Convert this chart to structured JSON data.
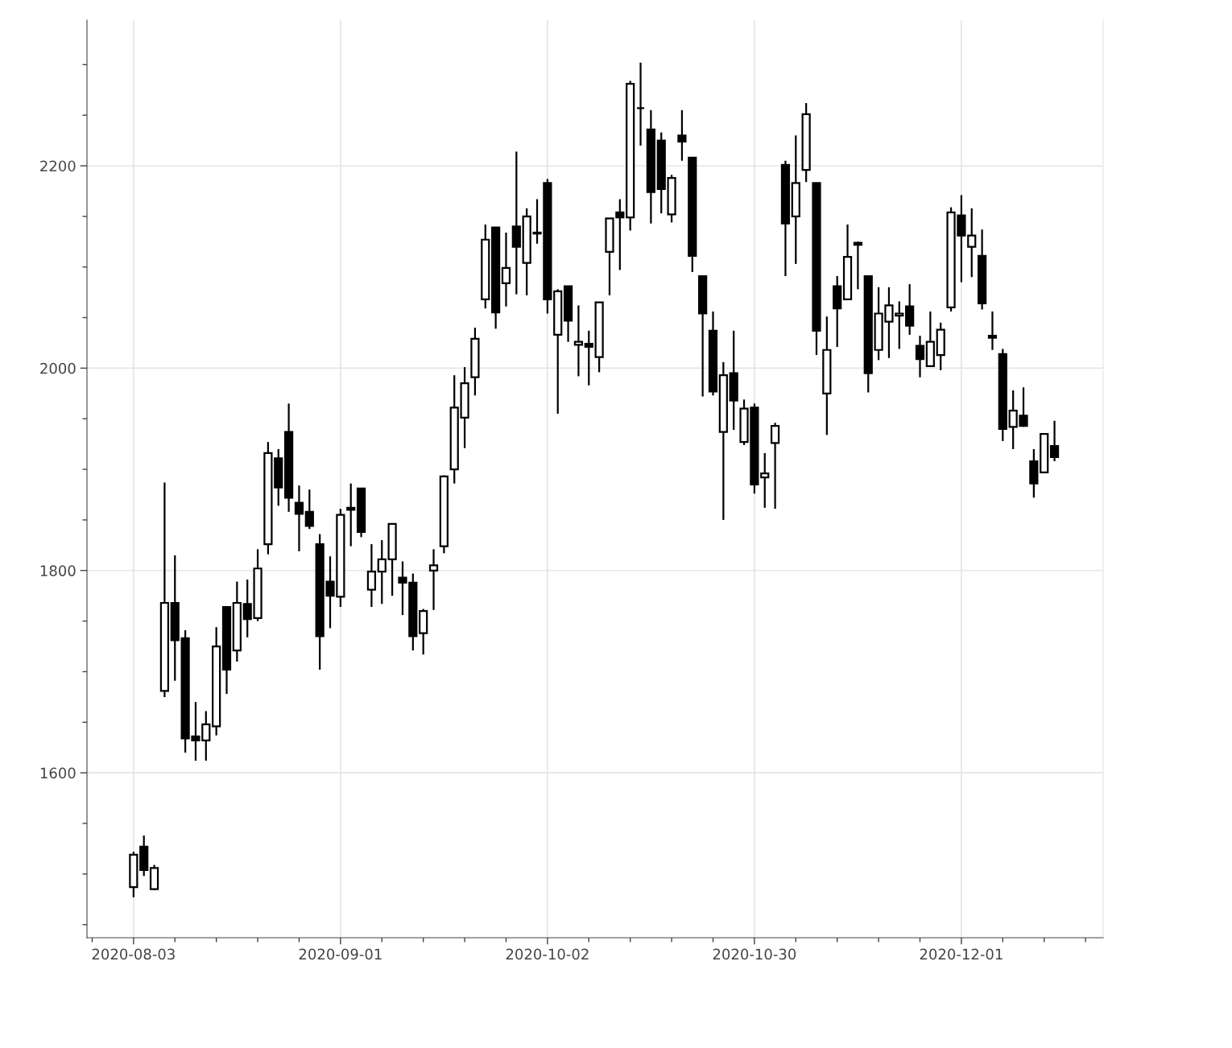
{
  "chart_data": {
    "type": "candlestick",
    "color": "#000000",
    "categories": [
      "2020-08-03",
      null,
      null,
      null,
      null,
      null,
      null,
      null,
      null,
      null,
      null,
      null,
      null,
      null,
      null,
      null,
      null,
      null,
      null,
      null,
      "2020-09-01",
      null,
      null,
      null,
      null,
      null,
      null,
      null,
      null,
      null,
      null,
      null,
      null,
      null,
      null,
      null,
      null,
      null,
      null,
      null,
      "2020-10-02",
      null,
      null,
      null,
      null,
      null,
      null,
      null,
      null,
      null,
      null,
      null,
      null,
      null,
      null,
      null,
      null,
      null,
      null,
      null,
      "2020-10-30",
      null,
      null,
      null,
      null,
      null,
      null,
      null,
      null,
      null,
      null,
      null,
      null,
      null,
      null,
      null,
      null,
      null,
      null,
      null,
      "2020-12-01",
      null,
      null,
      null,
      null,
      null,
      null,
      null,
      null,
      null
    ],
    "ohlc": [
      [
        1487,
        1522,
        1477,
        1519
      ],
      [
        1527,
        1538,
        1498,
        1504
      ],
      [
        1485,
        1509,
        1484,
        1506
      ],
      [
        1681,
        1887,
        1675,
        1768
      ],
      [
        1768,
        1815,
        1691,
        1731
      ],
      [
        1733,
        1741,
        1620,
        1634
      ],
      [
        1636,
        1670,
        1612,
        1632
      ],
      [
        1632,
        1661,
        1612,
        1648
      ],
      [
        1646,
        1744,
        1637,
        1725
      ],
      [
        1764,
        1764,
        1678,
        1702
      ],
      [
        1721,
        1789,
        1710,
        1768
      ],
      [
        1767,
        1791,
        1734,
        1752
      ],
      [
        1753,
        1821,
        1750,
        1802
      ],
      [
        1826,
        1927,
        1816,
        1916
      ],
      [
        1911,
        1920,
        1864,
        1882
      ],
      [
        1937,
        1965,
        1858,
        1872
      ],
      [
        1867,
        1884,
        1819,
        1856
      ],
      [
        1858,
        1880,
        1841,
        1844
      ],
      [
        1826,
        1836,
        1702,
        1735
      ],
      [
        1789,
        1814,
        1743,
        1775
      ],
      [
        1774,
        1861,
        1764,
        1855
      ],
      [
        1862,
        1886,
        1824,
        1860
      ],
      [
        1881,
        1881,
        1833,
        1838
      ],
      [
        1781,
        1826,
        1764,
        1799
      ],
      [
        1799,
        1830,
        1767,
        1811
      ],
      [
        1811,
        1846,
        1775,
        1846
      ],
      [
        1793,
        1809,
        1756,
        1788
      ],
      [
        1788,
        1797,
        1721,
        1735
      ],
      [
        1738,
        1762,
        1717,
        1760
      ],
      [
        1800,
        1821,
        1761,
        1805
      ],
      [
        1824,
        1894,
        1817,
        1893
      ],
      [
        1900,
        1993,
        1886,
        1961
      ],
      [
        1951,
        2001,
        1921,
        1985
      ],
      [
        1991,
        2040,
        1973,
        2029
      ],
      [
        2068,
        2142,
        2059,
        2127
      ],
      [
        2139,
        2139,
        2039,
        2055
      ],
      [
        2084,
        2134,
        2061,
        2099
      ],
      [
        2140,
        2214,
        2073,
        2120
      ],
      [
        2104,
        2158,
        2072,
        2150
      ],
      [
        2134,
        2167,
        2123,
        2133
      ],
      [
        2183,
        2187,
        2054,
        2068
      ],
      [
        2033,
        2078,
        1955,
        2076
      ],
      [
        2081,
        2081,
        2026,
        2047
      ],
      [
        2023,
        2062,
        1992,
        2026
      ],
      [
        2024,
        2037,
        1983,
        2021
      ],
      [
        2011,
        2065,
        1996,
        2065
      ],
      [
        2115,
        2148,
        2072,
        2148
      ],
      [
        2154,
        2167,
        2097,
        2149
      ],
      [
        2149,
        2284,
        2136,
        2281
      ],
      [
        2257,
        2302,
        2220,
        2257
      ],
      [
        2236,
        2255,
        2143,
        2174
      ],
      [
        2225,
        2233,
        2153,
        2177
      ],
      [
        2152,
        2191,
        2144,
        2188
      ],
      [
        2230,
        2255,
        2205,
        2224
      ],
      [
        2208,
        2208,
        2095,
        2111
      ],
      [
        2091,
        2091,
        1972,
        2054
      ],
      [
        2037,
        2056,
        1973,
        1977
      ],
      [
        1937,
        2006,
        1850,
        1993
      ],
      [
        1995,
        2037,
        1939,
        1968
      ],
      [
        1927,
        1969,
        1924,
        1960
      ],
      [
        1961,
        1965,
        1876,
        1885
      ],
      [
        1892,
        1916,
        1862,
        1896
      ],
      [
        1926,
        1946,
        1861,
        1943
      ],
      [
        2201,
        2205,
        2091,
        2143
      ],
      [
        2150,
        2230,
        2103,
        2183
      ],
      [
        2196,
        2262,
        2184,
        2251
      ],
      [
        2183,
        2183,
        2013,
        2037
      ],
      [
        1975,
        2051,
        1934,
        2018
      ],
      [
        2081,
        2091,
        2021,
        2059
      ],
      [
        2068,
        2142,
        2068,
        2110
      ],
      [
        2124,
        2125,
        2078,
        2122
      ],
      [
        2091,
        2091,
        1976,
        1995
      ],
      [
        2018,
        2080,
        2008,
        2054
      ],
      [
        2046,
        2080,
        2010,
        2062
      ],
      [
        2052,
        2066,
        2019,
        2054
      ],
      [
        2061,
        2083,
        2033,
        2042
      ],
      [
        2022,
        2032,
        1991,
        2009
      ],
      [
        2002,
        2056,
        2002,
        2026
      ],
      [
        2013,
        2045,
        1998,
        2038
      ],
      [
        2060,
        2159,
        2056,
        2154
      ],
      [
        2151,
        2171,
        2085,
        2131
      ],
      [
        2120,
        2158,
        2090,
        2131
      ],
      [
        2111,
        2137,
        2058,
        2064
      ],
      [
        2032,
        2056,
        2018,
        2030
      ],
      [
        2014,
        2019,
        1928,
        1940
      ],
      [
        1942,
        1978,
        1920,
        1958
      ],
      [
        1953,
        1981,
        1942,
        1943
      ],
      [
        1908,
        1920,
        1872,
        1886
      ],
      [
        1897,
        1935,
        1897,
        1935
      ],
      [
        1923,
        1948,
        1908,
        1912
      ]
    ],
    "ylim": [
      1437,
      2344
    ],
    "yticks": [
      1600,
      1800,
      2000,
      2200
    ],
    "grid": true
  }
}
